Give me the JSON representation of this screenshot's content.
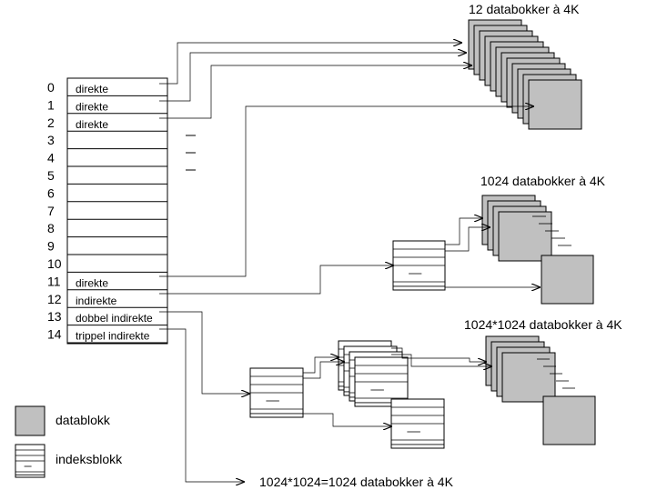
{
  "inode_rows": [
    {
      "index": "0",
      "label": "direkte"
    },
    {
      "index": "1",
      "label": "direkte"
    },
    {
      "index": "2",
      "label": "direkte"
    },
    {
      "index": "3",
      "label": ""
    },
    {
      "index": "4",
      "label": ""
    },
    {
      "index": "5",
      "label": ""
    },
    {
      "index": "6",
      "label": ""
    },
    {
      "index": "7",
      "label": ""
    },
    {
      "index": "8",
      "label": ""
    },
    {
      "index": "9",
      "label": ""
    },
    {
      "index": "10",
      "label": ""
    },
    {
      "index": "11",
      "label": "direkte"
    },
    {
      "index": "12",
      "label": "indirekte"
    },
    {
      "index": "13",
      "label": "dobbel indirekte"
    },
    {
      "index": "14",
      "label": "trippel indirekte"
    }
  ],
  "groups": {
    "direct": "12 databokker à 4K",
    "single": "1024 databokker à 4K",
    "double": "1024*1024 databokker à 4K",
    "triple": "1024*1024=1024 databokker à 4K"
  },
  "legend": {
    "data_block": "datablokk",
    "index_block": "indeksblokk"
  },
  "colors": {
    "data_block_fill": "#c0c0c0",
    "line": "#000000"
  }
}
